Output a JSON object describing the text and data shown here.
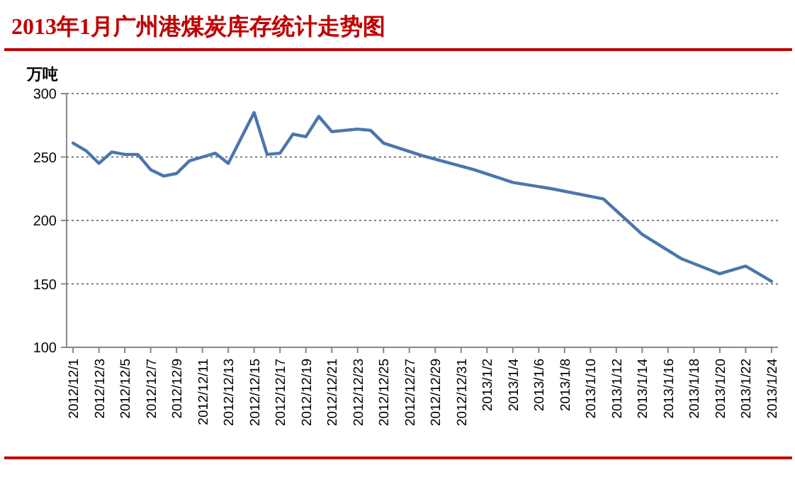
{
  "chart_data": {
    "type": "line",
    "title": "2013年1月广州港煤炭库存统计走势图",
    "ylabel": "万吨",
    "x": [
      "2012-12-01",
      "2012-12-02",
      "2012-12-03",
      "2012-12-04",
      "2012-12-05",
      "2012-12-06",
      "2012-12-07",
      "2012-12-08",
      "2012-12-09",
      "2012-12-10",
      "2012-12-11",
      "2012-12-12",
      "2012-12-13",
      "2012-12-15",
      "2012-12-16",
      "2012-12-17",
      "2012-12-18",
      "2012-12-19",
      "2012-12-20",
      "2012-12-21",
      "2012-12-23",
      "2012-12-24",
      "2012-12-25",
      "2012-12-28",
      "2013-01-01",
      "2013-01-04",
      "2013-01-07",
      "2013-01-11",
      "2013-01-14",
      "2013-01-17",
      "2013-01-20",
      "2013-01-22",
      "2013-01-24"
    ],
    "series": [
      {
        "color": "#4a76ad",
        "values": [
          261,
          255,
          245,
          254,
          252,
          252,
          240,
          235,
          237,
          247,
          250,
          253,
          245,
          285,
          252,
          253,
          268,
          266,
          282,
          270,
          272,
          271,
          261,
          251,
          240,
          230,
          225,
          217,
          189,
          170,
          158,
          164,
          152
        ]
      }
    ],
    "xlim": [
      "2012-11-30T12:00",
      "2013-01-24T12:00"
    ],
    "xticks": [
      {
        "value": "2012-12-01",
        "label": "2012/12/1"
      },
      {
        "value": "2012-12-03",
        "label": "2012/12/3"
      },
      {
        "value": "2012-12-05",
        "label": "2012/12/5"
      },
      {
        "value": "2012-12-07",
        "label": "2012/12/7"
      },
      {
        "value": "2012-12-09",
        "label": "2012/12/9"
      },
      {
        "value": "2012-12-11",
        "label": "2012/12/11"
      },
      {
        "value": "2012-12-13",
        "label": "2012/12/13"
      },
      {
        "value": "2012-12-15",
        "label": "2012/12/15"
      },
      {
        "value": "2012-12-17",
        "label": "2012/12/17"
      },
      {
        "value": "2012-12-19",
        "label": "2012/12/19"
      },
      {
        "value": "2012-12-21",
        "label": "2012/12/21"
      },
      {
        "value": "2012-12-23",
        "label": "2012/12/23"
      },
      {
        "value": "2012-12-25",
        "label": "2012/12/25"
      },
      {
        "value": "2012-12-27",
        "label": "2012/12/27"
      },
      {
        "value": "2012-12-29",
        "label": "2012/12/29"
      },
      {
        "value": "2012-12-31",
        "label": "2012/12/31"
      },
      {
        "value": "2013-01-02",
        "label": "2013/1/2"
      },
      {
        "value": "2013-01-04",
        "label": "2013/1/4"
      },
      {
        "value": "2013-01-06",
        "label": "2013/1/6"
      },
      {
        "value": "2013-01-08",
        "label": "2013/1/8"
      },
      {
        "value": "2013-01-10",
        "label": "2013/1/10"
      },
      {
        "value": "2013-01-12",
        "label": "2013/1/12"
      },
      {
        "value": "2013-01-14",
        "label": "2013/1/14"
      },
      {
        "value": "2013-01-16",
        "label": "2013/1/16"
      },
      {
        "value": "2013-01-18",
        "label": "2013/1/18"
      },
      {
        "value": "2013-01-20",
        "label": "2013/1/20"
      },
      {
        "value": "2013-01-22",
        "label": "2013/1/22"
      },
      {
        "value": "2013-01-24",
        "label": "2013/1/24"
      }
    ],
    "ylim": [
      100,
      300
    ],
    "yticks": [
      100,
      150,
      200,
      250,
      300
    ],
    "grid": "y",
    "marker": "none",
    "line_style": "solid"
  }
}
